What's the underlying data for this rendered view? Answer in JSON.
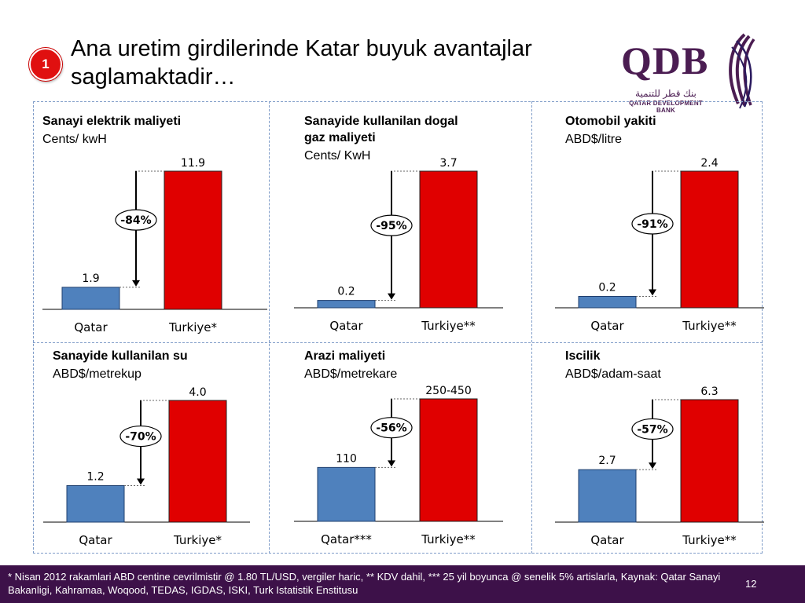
{
  "header": {
    "badge": "1",
    "title": "Ana uretim girdilerinde Katar buyuk avantajlar saglamaktadir…"
  },
  "logo": {
    "text": "QDB",
    "arabic": "بنك قطر للتنمية",
    "subtitle": "QATAR DEVELOPMENT BANK"
  },
  "colors": {
    "qatar_bar": "#4f81bd",
    "turkey_bar": "#e00000",
    "footer_bg": "#3d1149",
    "accent": "#4b1d52"
  },
  "chart_data": [
    {
      "type": "bar",
      "title_lines": [
        "Sanayi elektrik maliyeti"
      ],
      "unit": "Cents/ kwH",
      "categories": [
        "Qatar",
        "Turkiye*"
      ],
      "values": [
        1.9,
        11.9
      ],
      "value_labels": [
        "1.9",
        "11.9"
      ],
      "change_label": "-84%"
    },
    {
      "type": "bar",
      "title_lines": [
        "Sanayide kullanilan dogal",
        "gaz maliyeti"
      ],
      "unit": "Cents/ KwH",
      "categories": [
        "Qatar",
        "Turkiye**"
      ],
      "values": [
        0.2,
        3.7
      ],
      "value_labels": [
        "0.2",
        "3.7"
      ],
      "change_label": "-95%"
    },
    {
      "type": "bar",
      "title_lines": [
        "Otomobil yakiti"
      ],
      "unit": "ABD$/litre",
      "categories": [
        "Qatar",
        "Turkiye**"
      ],
      "values": [
        0.2,
        2.4
      ],
      "value_labels": [
        "0.2",
        "2.4"
      ],
      "change_label": "-91%"
    },
    {
      "type": "bar",
      "title_lines": [
        "Sanayide kullanilan su"
      ],
      "unit": "ABD$/metrekup",
      "categories": [
        "Qatar",
        "Turkiye*"
      ],
      "values": [
        1.2,
        4.0
      ],
      "value_labels": [
        "1.2",
        "4.0"
      ],
      "change_label": "-70%"
    },
    {
      "type": "bar",
      "title_lines": [
        "Arazi maliyeti"
      ],
      "unit": "ABD$/metrekare",
      "categories": [
        "Qatar***",
        "Turkiye**"
      ],
      "values": [
        110,
        250
      ],
      "value_labels": [
        "110",
        "250-450"
      ],
      "change_label": "-56%"
    },
    {
      "type": "bar",
      "title_lines": [
        "Iscilik"
      ],
      "unit": "ABD$/adam-saat",
      "categories": [
        "Qatar",
        "Turkiye**"
      ],
      "values": [
        2.7,
        6.3
      ],
      "value_labels": [
        "2.7",
        "6.3"
      ],
      "change_label": "-57%"
    }
  ],
  "footer": {
    "note": "* Nisan 2012 rakamlari ABD centine cevrilmistir @ 1.80 TL/USD, vergiler haric, ** KDV dahil, *** 25 yil boyunca @ senelik 5% artislarla, Kaynak: Qatar Sanayi Bakanligi, Kahramaa,  Woqood, TEDAS, IGDAS, ISKI, Turk Istatistik Enstitusu",
    "page": "12"
  }
}
